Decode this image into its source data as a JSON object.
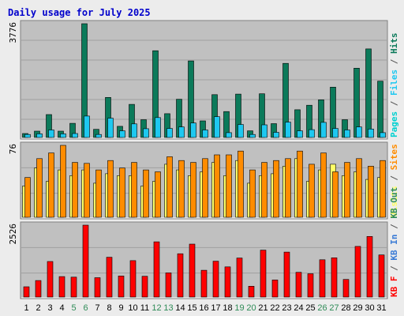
{
  "title": "Daily usage for July 2025",
  "colors": {
    "background": "#ececec",
    "panel": "#c0c0c0",
    "gridline": "#a0a0a0",
    "title": "#0000cc",
    "weekday": "#000000",
    "weekend": "#2e8b57",
    "hits": "#0b7a5a",
    "files": "#1ec8f0",
    "pages": "#00d0d0",
    "visits": "#ffff66",
    "sites": "#ff8c00",
    "kb_f": "#ff0000",
    "kb_in": "#3a7bd5",
    "kb_out": "#2e8b57"
  },
  "chart_data": [
    {
      "type": "bar",
      "panel": "top",
      "ytick": "3776",
      "ymax": 3776,
      "side_label": [
        {
          "text": "Pages",
          "color": "#00d0d0"
        },
        {
          "text": " / ",
          "color": "#555555"
        },
        {
          "text": "Files",
          "color": "#1ec8f0"
        },
        {
          "text": " / ",
          "color": "#555555"
        },
        {
          "text": "Hits",
          "color": "#0b7a5a"
        }
      ],
      "categories": [
        "1",
        "2",
        "3",
        "4",
        "5",
        "6",
        "7",
        "8",
        "9",
        "10",
        "11",
        "12",
        "13",
        "14",
        "15",
        "16",
        "17",
        "18",
        "19",
        "20",
        "21",
        "22",
        "23",
        "24",
        "25",
        "26",
        "27",
        "28",
        "29",
        "30",
        "31"
      ],
      "series": [
        {
          "name": "Hits",
          "values": [
            130,
            210,
            760,
            210,
            470,
            3776,
            270,
            1330,
            370,
            1100,
            590,
            2880,
            790,
            1270,
            2540,
            550,
            1420,
            860,
            1440,
            220,
            1450,
            460,
            2460,
            920,
            1070,
            1250,
            1670,
            590,
            2300,
            2940,
            1870
          ]
        },
        {
          "name": "Files",
          "values": [
            100,
            120,
            250,
            120,
            130,
            710,
            100,
            640,
            220,
            450,
            290,
            660,
            300,
            350,
            480,
            250,
            690,
            160,
            430,
            100,
            420,
            170,
            510,
            220,
            260,
            500,
            300,
            250,
            350,
            280,
            160
          ]
        }
      ]
    },
    {
      "type": "bar",
      "panel": "middle",
      "ytick": "76",
      "ymax": 76,
      "side_label": [
        {
          "text": "Visits",
          "color": "#ffff66"
        },
        {
          "text": " / ",
          "color": "#555555"
        },
        {
          "text": "Sites",
          "color": "#ff8c00"
        }
      ],
      "categories": [
        "1",
        "2",
        "3",
        "4",
        "5",
        "6",
        "7",
        "8",
        "9",
        "10",
        "11",
        "12",
        "13",
        "14",
        "15",
        "16",
        "17",
        "18",
        "19",
        "20",
        "21",
        "22",
        "23",
        "24",
        "25",
        "26",
        "27",
        "28",
        "29",
        "30",
        "31"
      ],
      "series": [
        {
          "name": "Visits",
          "values": [
            33,
            52,
            38,
            50,
            44,
            50,
            36,
            46,
            44,
            44,
            33,
            38,
            56,
            50,
            44,
            48,
            58,
            44,
            60,
            36,
            44,
            46,
            54,
            62,
            38,
            50,
            56,
            44,
            48,
            40,
            42
          ]
        },
        {
          "name": "Sites",
          "values": [
            42,
            62,
            68,
            76,
            58,
            57,
            50,
            60,
            52,
            58,
            50,
            48,
            64,
            60,
            58,
            62,
            66,
            66,
            70,
            50,
            58,
            60,
            62,
            70,
            56,
            68,
            48,
            58,
            62,
            54,
            60
          ]
        }
      ]
    },
    {
      "type": "bar",
      "panel": "bottom",
      "ytick": "2526",
      "ymax": 2526,
      "side_label": [
        {
          "text": "KB F",
          "color": "#ff0000"
        },
        {
          "text": " / ",
          "color": "#555555"
        },
        {
          "text": "KB In",
          "color": "#3a7bd5"
        },
        {
          "text": " / ",
          "color": "#555555"
        },
        {
          "text": "KB Out",
          "color": "#2e8b57"
        }
      ],
      "categories": [
        "1",
        "2",
        "3",
        "4",
        "5",
        "6",
        "7",
        "8",
        "9",
        "10",
        "11",
        "12",
        "13",
        "14",
        "15",
        "16",
        "17",
        "18",
        "19",
        "20",
        "21",
        "22",
        "23",
        "24",
        "25",
        "26",
        "27",
        "28",
        "29",
        "30",
        "31"
      ],
      "series": [
        {
          "name": "KB F",
          "values": [
            360,
            580,
            1250,
            720,
            700,
            2526,
            680,
            1400,
            740,
            1280,
            730,
            1940,
            850,
            1520,
            1860,
            940,
            1260,
            1060,
            1370,
            380,
            1650,
            600,
            1580,
            870,
            820,
            1310,
            1380,
            620,
            1780,
            2130,
            1480
          ]
        }
      ]
    }
  ],
  "weekend_days": [
    5,
    6,
    12,
    13,
    19,
    20,
    26,
    27
  ]
}
